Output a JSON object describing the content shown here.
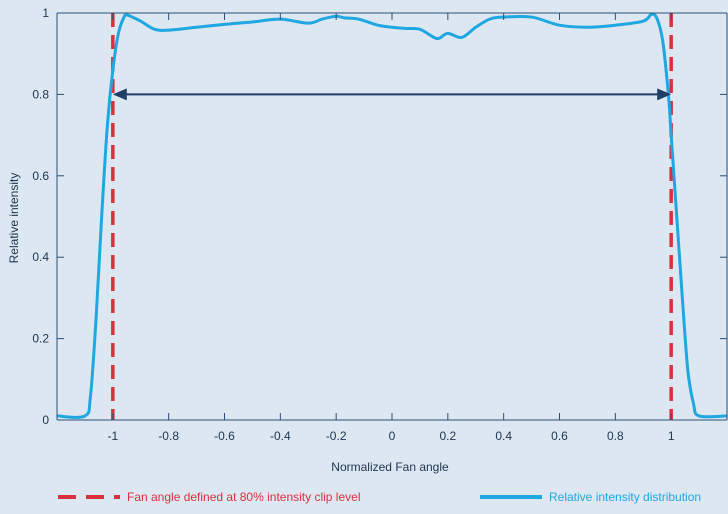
{
  "chart_data": {
    "type": "line",
    "xlabel": "Normalized Fan angle",
    "ylabel": "Relative intensity",
    "xlim": [
      -1.2,
      1.2
    ],
    "ylim": [
      0,
      1
    ],
    "xticks": [
      -1,
      -0.8,
      -0.6,
      -0.4,
      -0.2,
      0,
      0.2,
      0.4,
      0.6,
      0.8,
      1
    ],
    "xtick_labels": [
      "-1",
      "-0.8",
      "-0.6",
      "-0.4",
      "-0.2",
      "0",
      "0.2",
      "0.4",
      "0.6",
      "0.8",
      "1"
    ],
    "yticks": [
      0,
      0.2,
      0.4,
      0.6,
      0.8,
      1
    ],
    "ytick_labels": [
      "0",
      "0.2",
      "0.4",
      "0.6",
      "0.8",
      "1"
    ],
    "grid": false,
    "legend_position": "bottom",
    "series": [
      {
        "name": "Relative intensity distribution",
        "color": "#1ea7e1",
        "style": "solid",
        "x": [
          -1.2,
          -1.1,
          -1.08,
          -1.06,
          -1.04,
          -1.02,
          -1.0,
          -0.98,
          -0.96,
          -0.95,
          -0.93,
          -0.9,
          -0.85,
          -0.8,
          -0.7,
          -0.6,
          -0.5,
          -0.4,
          -0.3,
          -0.25,
          -0.2,
          -0.17,
          -0.12,
          -0.05,
          0.0,
          0.05,
          0.1,
          0.15,
          0.17,
          0.2,
          0.25,
          0.3,
          0.35,
          0.4,
          0.5,
          0.6,
          0.7,
          0.8,
          0.9,
          0.93,
          0.95,
          0.97,
          0.99,
          1.0,
          1.02,
          1.04,
          1.06,
          1.08,
          1.1,
          1.2
        ],
        "y": [
          0.01,
          0.01,
          0.06,
          0.25,
          0.5,
          0.72,
          0.86,
          0.95,
          0.99,
          0.995,
          0.99,
          0.98,
          0.96,
          0.958,
          0.965,
          0.972,
          0.978,
          0.985,
          0.975,
          0.985,
          0.992,
          0.988,
          0.985,
          0.97,
          0.965,
          0.962,
          0.96,
          0.94,
          0.938,
          0.95,
          0.94,
          0.965,
          0.985,
          0.99,
          0.99,
          0.97,
          0.965,
          0.97,
          0.98,
          0.997,
          0.985,
          0.93,
          0.8,
          0.7,
          0.5,
          0.3,
          0.12,
          0.04,
          0.01,
          0.01
        ]
      },
      {
        "name": "Fan angle defined at 80% intensity clip level",
        "color": "#d9303c",
        "style": "dashed",
        "x": [
          -1,
          1
        ],
        "y": [
          0,
          1
        ]
      }
    ],
    "annotations": [
      {
        "type": "double-arrow",
        "x_from": -1,
        "x_to": 1,
        "y": 0.8,
        "color": "#1f3f66"
      }
    ]
  }
}
